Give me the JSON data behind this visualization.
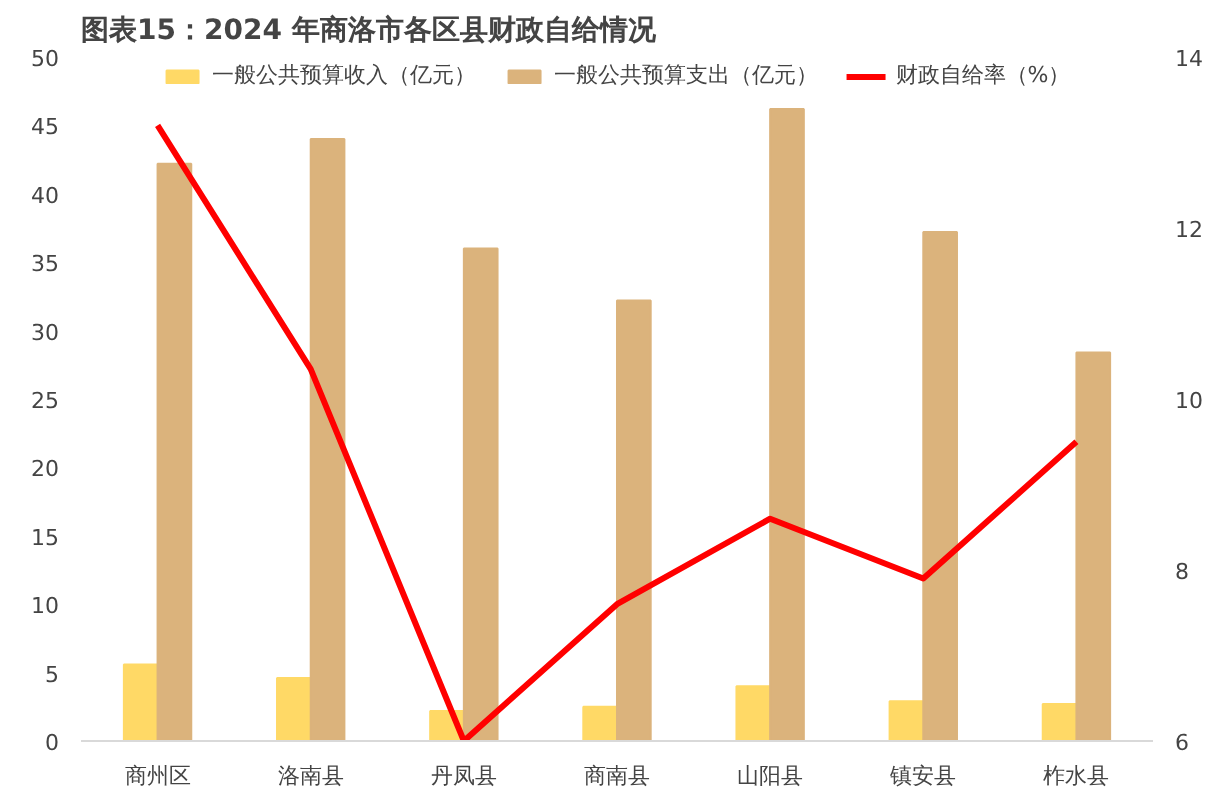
{
  "chart_data": {
    "type": "bar",
    "title": "图表15：2024 年商洛市各区县财政自给情况",
    "categories": [
      "商州区",
      "洛南县",
      "丹凤县",
      "商南县",
      "山阳县",
      "镇安县",
      "柞水县"
    ],
    "series": [
      {
        "name": "一般公共预算收入（亿元）",
        "color": "#ffd966",
        "values": [
          5.6,
          4.6,
          2.2,
          2.5,
          4.0,
          2.9,
          2.7
        ]
      },
      {
        "name": "一般公共预算支出（亿元）",
        "color": "#dbb37c",
        "values": [
          42.2,
          44.0,
          36.0,
          32.2,
          46.2,
          37.2,
          28.4
        ]
      },
      {
        "name": "财政自给率（%）",
        "type": "line",
        "axis": "y2",
        "color": "#ff0000",
        "values": [
          13.2,
          10.35,
          6.0,
          7.6,
          8.6,
          7.9,
          9.5
        ]
      }
    ],
    "ylim": [
      0,
      50
    ],
    "yticks": [
      0,
      5,
      10,
      15,
      20,
      25,
      30,
      35,
      40,
      45,
      50
    ],
    "y2lim": [
      6,
      14
    ],
    "y2ticks": [
      6,
      8,
      10,
      12,
      14
    ],
    "grid": false,
    "legend": "top"
  }
}
